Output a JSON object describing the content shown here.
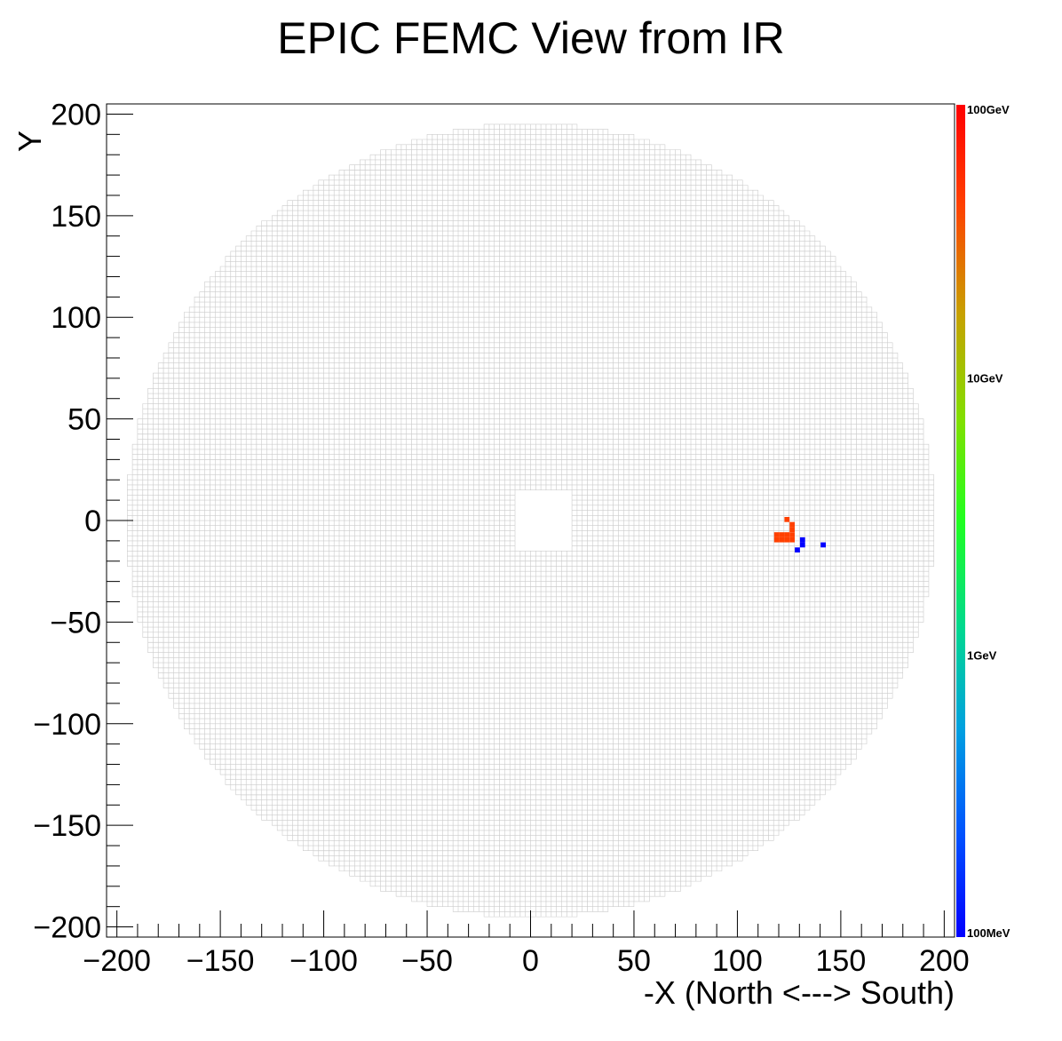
{
  "chart_data": {
    "type": "heatmap",
    "title": "EPIC FEMC View from IR",
    "xlabel": "-X (North <---> South)",
    "ylabel": "Y",
    "xlim": [
      -205,
      205
    ],
    "ylim": [
      -205,
      205
    ],
    "xticks": [
      -200,
      -150,
      -100,
      -50,
      0,
      50,
      100,
      150,
      200
    ],
    "yticks": [
      -200,
      -150,
      -100,
      -50,
      0,
      50,
      100,
      150,
      200
    ],
    "xtick_labels": [
      "−200",
      "−150",
      "−100",
      "−50",
      "0",
      "50",
      "100",
      "150",
      "200"
    ],
    "ytick_labels": [
      "−200",
      "−150",
      "−100",
      "−50",
      "0",
      "50",
      "100",
      "150",
      "200"
    ],
    "colorbar": {
      "scale": "log",
      "range_gev": [
        0.1,
        100
      ],
      "labels": [
        "100GeV",
        "10GeV",
        "1GeV",
        "100MeV"
      ],
      "label_values_gev": [
        100,
        10,
        1,
        0.1
      ],
      "colors": [
        "#ff0000",
        "#ff4000",
        "#c8a000",
        "#80e000",
        "#20ff20",
        "#00d890",
        "#00a0e0",
        "#0050ff",
        "#0000ff"
      ]
    },
    "detector": {
      "cell_pitch": 2.5,
      "outer_radius": 195,
      "beam_hole": {
        "x": [
          -8,
          20
        ],
        "y": [
          -15,
          15
        ]
      },
      "outline_color": "#cccccc"
    },
    "hits": [
      {
        "x": 119,
        "y": -7,
        "energy_gev": 60
      },
      {
        "x": 121.5,
        "y": -7,
        "energy_gev": 60
      },
      {
        "x": 124,
        "y": -7,
        "energy_gev": 60
      },
      {
        "x": 126.5,
        "y": -7,
        "energy_gev": 60
      },
      {
        "x": 119,
        "y": -9.5,
        "energy_gev": 60
      },
      {
        "x": 121.5,
        "y": -9.5,
        "energy_gev": 60
      },
      {
        "x": 124,
        "y": -9.5,
        "energy_gev": 60
      },
      {
        "x": 126.5,
        "y": -9.5,
        "energy_gev": 60
      },
      {
        "x": 126.5,
        "y": -4.5,
        "energy_gev": 60
      },
      {
        "x": 126.5,
        "y": -2,
        "energy_gev": 60
      },
      {
        "x": 124,
        "y": 0.5,
        "energy_gev": 60
      },
      {
        "x": 131.5,
        "y": -9.5,
        "energy_gev": 0.1
      },
      {
        "x": 131.5,
        "y": -12,
        "energy_gev": 0.1
      },
      {
        "x": 129,
        "y": -14.5,
        "energy_gev": 0.1
      },
      {
        "x": 141.5,
        "y": -12,
        "energy_gev": 0.1
      }
    ]
  }
}
